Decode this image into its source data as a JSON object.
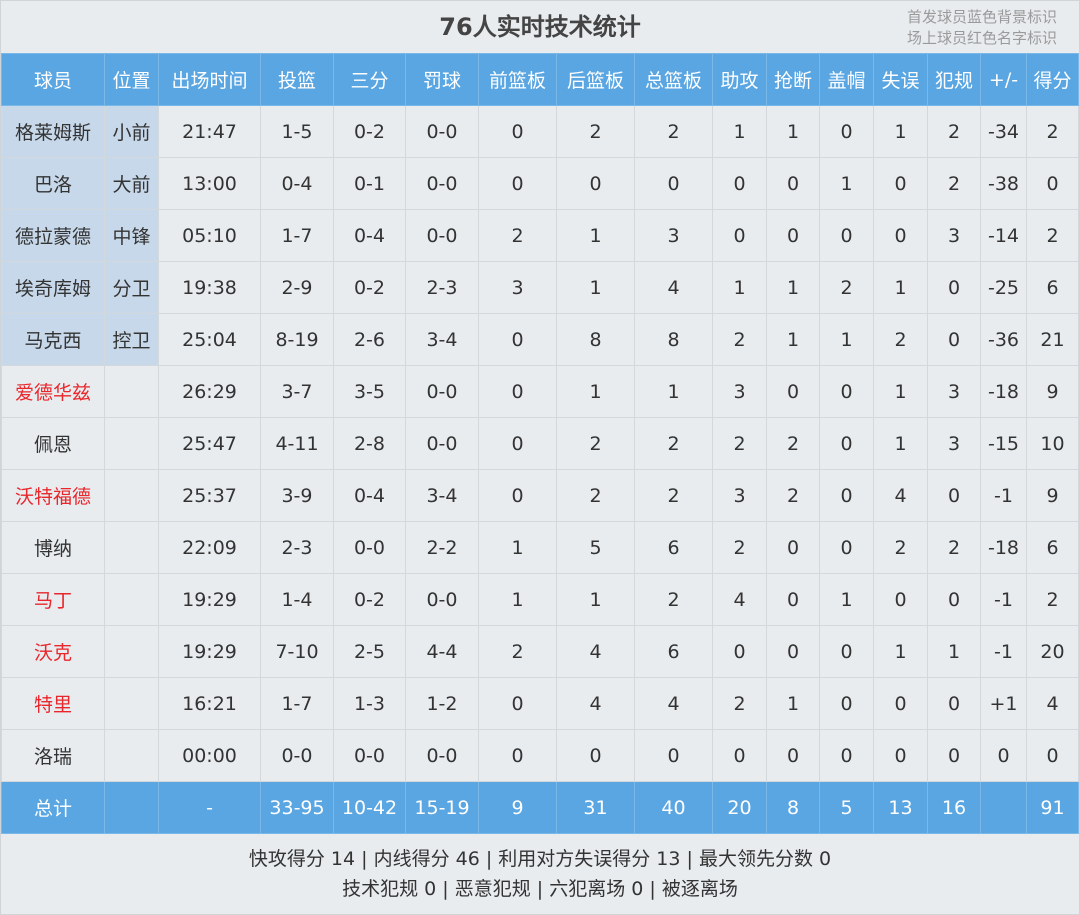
{
  "title": "76人实时技术统计",
  "legend": [
    "首发球员蓝色背景标识",
    "场上球员红色名字标识"
  ],
  "colors": {
    "header_bg": "#5aa6e2",
    "starter_bg": "#c7d8ea",
    "on_court_name": "#e8262b"
  },
  "columns": [
    "球员",
    "位置",
    "出场时间",
    "投篮",
    "三分",
    "罚球",
    "前篮板",
    "后篮板",
    "总篮板",
    "助攻",
    "抢断",
    "盖帽",
    "失误",
    "犯规",
    "+/-",
    "得分"
  ],
  "rows": [
    {
      "starter": true,
      "on_court": false,
      "cells": [
        "格莱姆斯",
        "小前",
        "21:47",
        "1-5",
        "0-2",
        "0-0",
        "0",
        "2",
        "2",
        "1",
        "1",
        "0",
        "1",
        "2",
        "-34",
        "2"
      ]
    },
    {
      "starter": true,
      "on_court": false,
      "cells": [
        "巴洛",
        "大前",
        "13:00",
        "0-4",
        "0-1",
        "0-0",
        "0",
        "0",
        "0",
        "0",
        "0",
        "1",
        "0",
        "2",
        "-38",
        "0"
      ]
    },
    {
      "starter": true,
      "on_court": false,
      "cells": [
        "德拉蒙德",
        "中锋",
        "05:10",
        "1-7",
        "0-4",
        "0-0",
        "2",
        "1",
        "3",
        "0",
        "0",
        "0",
        "0",
        "3",
        "-14",
        "2"
      ]
    },
    {
      "starter": true,
      "on_court": false,
      "cells": [
        "埃奇库姆",
        "分卫",
        "19:38",
        "2-9",
        "0-2",
        "2-3",
        "3",
        "1",
        "4",
        "1",
        "1",
        "2",
        "1",
        "0",
        "-25",
        "6"
      ]
    },
    {
      "starter": true,
      "on_court": false,
      "cells": [
        "马克西",
        "控卫",
        "25:04",
        "8-19",
        "2-6",
        "3-4",
        "0",
        "8",
        "8",
        "2",
        "1",
        "1",
        "2",
        "0",
        "-36",
        "21"
      ]
    },
    {
      "starter": false,
      "on_court": true,
      "cells": [
        "爱德华兹",
        "",
        "26:29",
        "3-7",
        "3-5",
        "0-0",
        "0",
        "1",
        "1",
        "3",
        "0",
        "0",
        "1",
        "3",
        "-18",
        "9"
      ]
    },
    {
      "starter": false,
      "on_court": false,
      "cells": [
        "佩恩",
        "",
        "25:47",
        "4-11",
        "2-8",
        "0-0",
        "0",
        "2",
        "2",
        "2",
        "2",
        "0",
        "1",
        "3",
        "-15",
        "10"
      ]
    },
    {
      "starter": false,
      "on_court": true,
      "cells": [
        "沃特福德",
        "",
        "25:37",
        "3-9",
        "0-4",
        "3-4",
        "0",
        "2",
        "2",
        "3",
        "2",
        "0",
        "4",
        "0",
        "-1",
        "9"
      ]
    },
    {
      "starter": false,
      "on_court": false,
      "cells": [
        "博纳",
        "",
        "22:09",
        "2-3",
        "0-0",
        "2-2",
        "1",
        "5",
        "6",
        "2",
        "0",
        "0",
        "2",
        "2",
        "-18",
        "6"
      ]
    },
    {
      "starter": false,
      "on_court": true,
      "cells": [
        "马丁",
        "",
        "19:29",
        "1-4",
        "0-2",
        "0-0",
        "1",
        "1",
        "2",
        "4",
        "0",
        "1",
        "0",
        "0",
        "-1",
        "2"
      ]
    },
    {
      "starter": false,
      "on_court": true,
      "cells": [
        "沃克",
        "",
        "19:29",
        "7-10",
        "2-5",
        "4-4",
        "2",
        "4",
        "6",
        "0",
        "0",
        "0",
        "1",
        "1",
        "-1",
        "20"
      ]
    },
    {
      "starter": false,
      "on_court": true,
      "cells": [
        "特里",
        "",
        "16:21",
        "1-7",
        "1-3",
        "1-2",
        "0",
        "4",
        "4",
        "2",
        "1",
        "0",
        "0",
        "0",
        "+1",
        "4"
      ]
    },
    {
      "starter": false,
      "on_court": false,
      "cells": [
        "洛瑞",
        "",
        "00:00",
        "0-0",
        "0-0",
        "0-0",
        "0",
        "0",
        "0",
        "0",
        "0",
        "0",
        "0",
        "0",
        "0",
        "0"
      ]
    }
  ],
  "total": [
    "总计",
    "",
    "-",
    "33-95",
    "10-42",
    "15-19",
    "9",
    "31",
    "40",
    "20",
    "8",
    "5",
    "13",
    "16",
    "",
    "91"
  ],
  "footer": {
    "line1": "快攻得分 14 | 内线得分 46 | 利用对方失误得分 13 | 最大领先分数 0",
    "line2": "技术犯规 0 | 恶意犯规  | 六犯离场 0 | 被逐离场"
  }
}
